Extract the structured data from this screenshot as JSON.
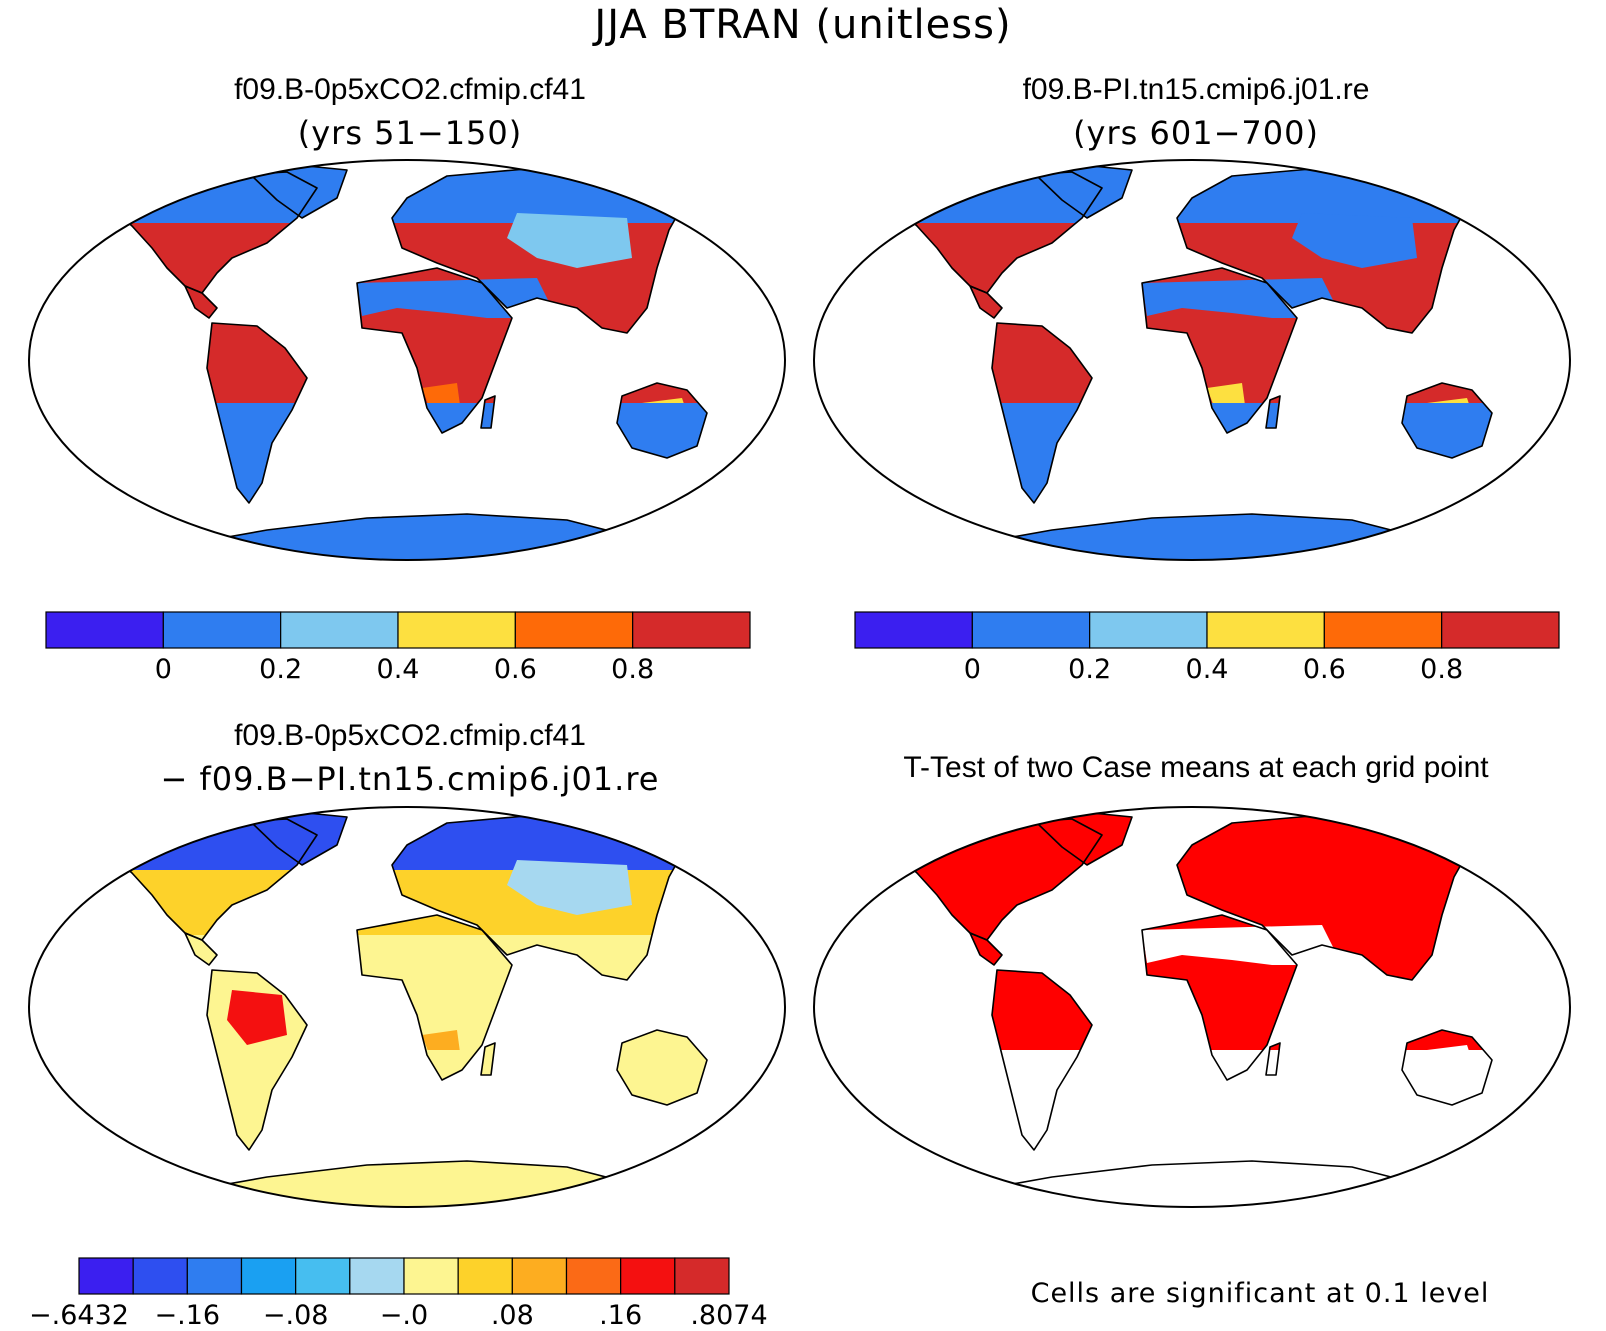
{
  "title": "JJA BTRAN (unitless)",
  "panels": [
    {
      "id": "case1",
      "title": "f09.B-0p5xCO2.cfmip.cf41",
      "subtitle": "(yrs 51−150)"
    },
    {
      "id": "case2",
      "title": "f09.B-PI.tn15.cmip6.j01.re",
      "subtitle": "(yrs 601−700)"
    },
    {
      "id": "diff",
      "title": "f09.B-0p5xCO2.cfmip.cf41",
      "subtitle": "− f09.B−PI.tn15.cmip6.j01.re"
    },
    {
      "id": "ttest",
      "title": "T-Test of two Case means at each grid point",
      "subtitle": ""
    }
  ],
  "colorbar_abs": {
    "colors": [
      "#3b1ff0",
      "#2f7df0",
      "#7ec8ef",
      "#fde040",
      "#fe6a08",
      "#d52a2a"
    ],
    "labels": [
      "0",
      "0.2",
      "0.4",
      "0.6",
      "0.8"
    ]
  },
  "colorbar_diff": {
    "colors": [
      "#3b1ff0",
      "#2e4ff0",
      "#2f7df0",
      "#1aa0f2",
      "#46bef0",
      "#a6d8f0",
      "#fdf591",
      "#fdd22a",
      "#fdad20",
      "#fb6a16",
      "#f41010",
      "#d52a2a"
    ],
    "labels": [
      "−.6432",
      "−.16",
      "−.08",
      "−.0",
      ".08",
      ".16",
      ".8074"
    ]
  },
  "significance_note": "Cells are significant at 0.1 level",
  "colors": {
    "ttest_fill": "#ff0000",
    "ocean": "#ffffff",
    "outline": "#000000"
  }
}
